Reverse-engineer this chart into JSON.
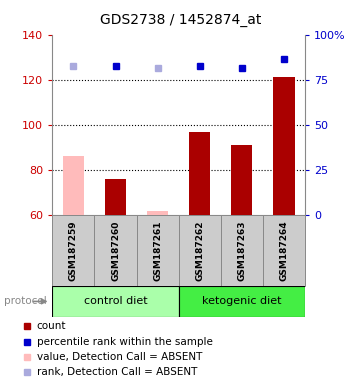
{
  "title": "GDS2738 / 1452874_at",
  "samples": [
    "GSM187259",
    "GSM187260",
    "GSM187261",
    "GSM187262",
    "GSM187263",
    "GSM187264"
  ],
  "bar_values": [
    86,
    76,
    62,
    97,
    91,
    121
  ],
  "bar_absent": [
    true,
    false,
    true,
    false,
    false,
    false
  ],
  "percentile_values": [
    126,
    126,
    125,
    126,
    125,
    129
  ],
  "percentile_absent": [
    true,
    false,
    true,
    false,
    false,
    false
  ],
  "percentile_color_absent": "#aaaadd",
  "percentile_color_present": "#0000cc",
  "bar_color_absent": "#ffbbbb",
  "bar_color_present": "#aa0000",
  "ylim_left": [
    60,
    140
  ],
  "ylim_right": [
    0,
    100
  ],
  "yticks_left": [
    60,
    80,
    100,
    120,
    140
  ],
  "yticks_right": [
    0,
    25,
    50,
    75,
    100
  ],
  "ytick_labels_right": [
    "0",
    "25",
    "50",
    "75",
    "100%"
  ],
  "dotted_lines": [
    80,
    100,
    120
  ],
  "protocol_groups": [
    {
      "label": "control diet",
      "indices": [
        0,
        1,
        2
      ],
      "color": "#aaffaa"
    },
    {
      "label": "ketogenic diet",
      "indices": [
        3,
        4,
        5
      ],
      "color": "#44ee44"
    }
  ],
  "legend_items": [
    {
      "color": "#aa0000",
      "label": "count"
    },
    {
      "color": "#0000cc",
      "label": "percentile rank within the sample"
    },
    {
      "color": "#ffbbbb",
      "label": "value, Detection Call = ABSENT"
    },
    {
      "color": "#aaaadd",
      "label": "rank, Detection Call = ABSENT"
    }
  ],
  "bg_color": "#ffffff",
  "axis_color_left": "#cc0000",
  "axis_color_right": "#0000cc",
  "bar_width": 0.5,
  "sample_label_fontsize": 6.5,
  "title_fontsize": 10,
  "legend_fontsize": 7.5,
  "sample_box_color": "#cccccc",
  "sample_box_edge": "#888888"
}
